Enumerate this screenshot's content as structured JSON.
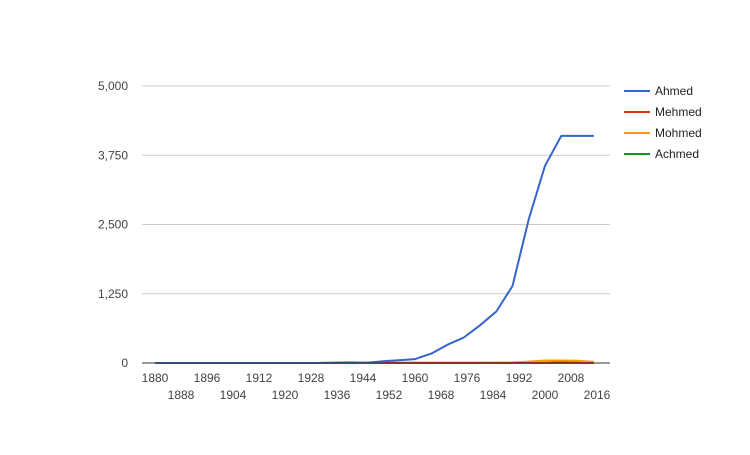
{
  "chart_data": {
    "type": "line",
    "title": "",
    "xlabel": "",
    "ylabel": "",
    "xlim": [
      1880,
      2016
    ],
    "ylim": [
      0,
      5000
    ],
    "y_ticks": [
      "0",
      "1,250",
      "2,500",
      "3,750",
      "5,000"
    ],
    "y_tick_values": [
      0,
      1250,
      2500,
      3750,
      5000
    ],
    "x_ticks": [
      "1880",
      "1888",
      "1896",
      "1904",
      "1912",
      "1920",
      "1928",
      "1936",
      "1944",
      "1952",
      "1960",
      "1968",
      "1976",
      "1984",
      "1992",
      "2000",
      "2008",
      "2016"
    ],
    "x_tick_values": [
      1880,
      1888,
      1896,
      1904,
      1912,
      1920,
      1928,
      1936,
      1944,
      1952,
      1960,
      1968,
      1976,
      1984,
      1992,
      2000,
      2008,
      2016
    ],
    "grid": true,
    "legend_position": "right",
    "x": [
      1880,
      1890,
      1900,
      1910,
      1920,
      1930,
      1940,
      1945,
      1950,
      1955,
      1960,
      1965,
      1970,
      1975,
      1980,
      1985,
      1990,
      1995,
      2000,
      2005,
      2010,
      2015
    ],
    "series": [
      {
        "name": "Ahmed",
        "color": "#3366cc",
        "values": [
          0,
          0,
          0,
          0,
          0,
          0,
          5,
          5,
          30,
          50,
          70,
          170,
          330,
          460,
          680,
          930,
          1390,
          2600,
          3560,
          4100,
          4100,
          4100
        ]
      },
      {
        "name": "Mehmed",
        "color": "#dc3912",
        "values": [
          0,
          0,
          0,
          0,
          0,
          0,
          0,
          0,
          0,
          0,
          0,
          0,
          0,
          0,
          0,
          0,
          0,
          0,
          0,
          0,
          0,
          0
        ]
      },
      {
        "name": "Mohmed",
        "color": "#ff9900",
        "values": [
          0,
          0,
          0,
          0,
          0,
          0,
          0,
          0,
          0,
          0,
          0,
          0,
          0,
          0,
          0,
          5,
          10,
          25,
          45,
          45,
          40,
          20
        ]
      },
      {
        "name": "Achmed",
        "color": "#109618",
        "values": [
          0,
          0,
          0,
          0,
          0,
          0,
          10,
          5,
          5,
          5,
          5,
          5,
          5,
          5,
          5,
          5,
          5,
          5,
          5,
          10,
          10,
          10
        ]
      }
    ]
  }
}
